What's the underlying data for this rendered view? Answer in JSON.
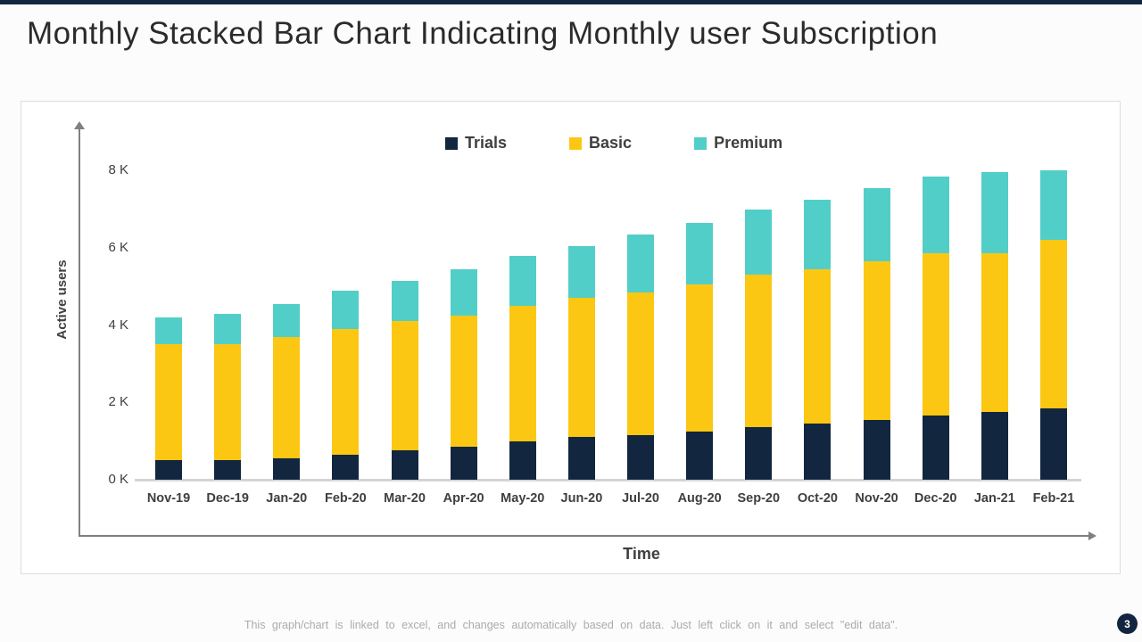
{
  "slide": {
    "title": "Monthly Stacked Bar Chart Indicating Monthly user Subscription",
    "footer_note": "This graph/chart is linked to excel, and changes automatically based on data. Just left click on it and select \"edit data\".",
    "page_number": "3"
  },
  "colors": {
    "accent_navy": "#13263F",
    "trials": "#13263F",
    "basic": "#FCC713",
    "premium": "#52CEC8",
    "axis_gray": "#808080",
    "baseline_gray": "#D4D4D4",
    "panel_border": "#DCDCDC",
    "text_dark": "#3F3F3F",
    "footer_gray": "#ABABAB"
  },
  "chart_data": {
    "type": "bar",
    "stacked": true,
    "unit": "K users",
    "xlabel": "Time",
    "ylabel": "Active users",
    "ylim": [
      0,
      8.8
    ],
    "grid": false,
    "legend_position": "top-center",
    "ytick_labels": [
      "0 K",
      "2 K",
      "4 K",
      "6 K",
      "8 K"
    ],
    "ytick_values": [
      0,
      2,
      4,
      6,
      8
    ],
    "categories": [
      "Nov-19",
      "Dec-19",
      "Jan-20",
      "Feb-20",
      "Mar-20",
      "Apr-20",
      "May-20",
      "Jun-20",
      "Jul-20",
      "Aug-20",
      "Sep-20",
      "Oct-20",
      "Nov-20",
      "Dec-20",
      "Jan-21",
      "Feb-21"
    ],
    "series": [
      {
        "name": "Trials",
        "color_key": "trials",
        "values": [
          0.5,
          0.5,
          0.55,
          0.65,
          0.75,
          0.85,
          1.0,
          1.1,
          1.15,
          1.25,
          1.35,
          1.45,
          1.55,
          1.65,
          1.75,
          1.85
        ]
      },
      {
        "name": "Basic",
        "color_key": "basic",
        "values": [
          3.0,
          3.0,
          3.15,
          3.25,
          3.35,
          3.4,
          3.5,
          3.6,
          3.7,
          3.8,
          3.95,
          4.0,
          4.1,
          4.2,
          4.1,
          4.35
        ]
      },
      {
        "name": "Premium",
        "color_key": "premium",
        "values": [
          0.7,
          0.8,
          0.85,
          1.0,
          1.05,
          1.2,
          1.3,
          1.35,
          1.5,
          1.6,
          1.7,
          1.8,
          1.9,
          2.0,
          2.1,
          1.8
        ]
      }
    ]
  }
}
